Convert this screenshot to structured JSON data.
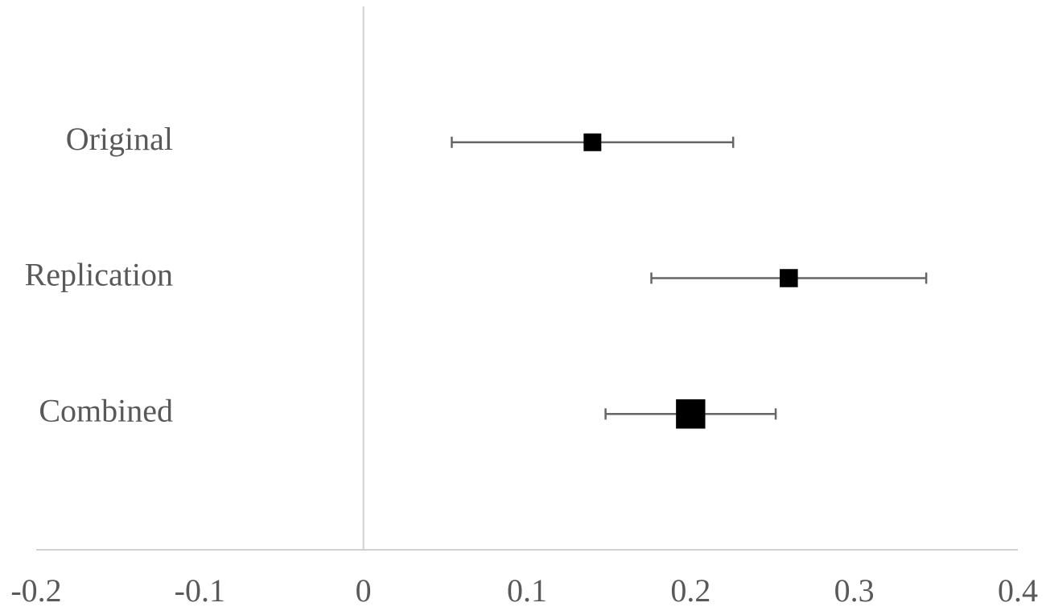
{
  "chart_data": {
    "type": "forest",
    "categories": [
      "Original",
      "Replication",
      "Combined"
    ],
    "values": [
      0.14,
      0.26,
      0.2
    ],
    "ci_low": [
      0.054,
      0.176,
      0.148
    ],
    "ci_high": [
      0.226,
      0.344,
      0.252
    ],
    "color": "#000000",
    "error_color": "#666666",
    "xlim": [
      -0.2,
      0.4
    ],
    "xticks": [
      -0.2,
      -0.1,
      0,
      0.1,
      0.2,
      0.3,
      0.4
    ]
  }
}
